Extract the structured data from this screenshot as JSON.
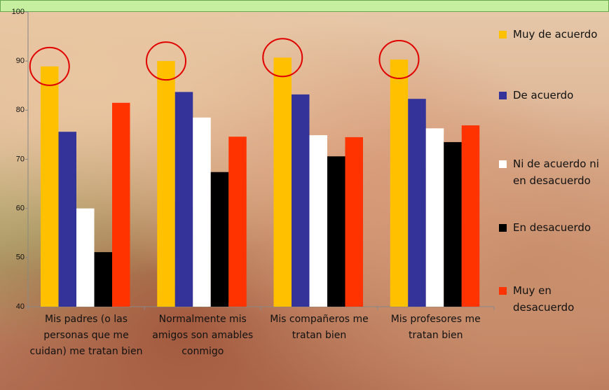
{
  "chart_data": {
    "type": "bar",
    "categories": [
      "Mis padres (o las personas que me cuidan) me tratan bien",
      "Normalmente mis amigos son amables conmigo",
      "Mis compañeros me tratan bien",
      "Mis profesores me tratan bien"
    ],
    "series": [
      {
        "name": "Muy de acuerdo",
        "color": "#ffc000",
        "values": [
          88.9,
          90,
          90.7,
          90.3
        ]
      },
      {
        "name": "De acuerdo",
        "color": "#333399",
        "values": [
          75.6,
          83.7,
          83.2,
          82.3
        ]
      },
      {
        "name": "Ni de acuerdo ni en desacuerdo",
        "color": "#ffffff",
        "values": [
          60,
          78.5,
          74.9,
          76.3
        ]
      },
      {
        "name": "En desacuerdo",
        "color": "#000000",
        "values": [
          51.1,
          67.4,
          70.6,
          73.5
        ]
      },
      {
        "name": "Muy en desacuerdo",
        "color": "#ff3300",
        "values": [
          81.5,
          74.6,
          74.5,
          76.9
        ]
      }
    ],
    "ylim": [
      40,
      100
    ],
    "yticks": [
      40,
      50,
      60,
      70,
      80,
      90,
      100
    ]
  }
}
